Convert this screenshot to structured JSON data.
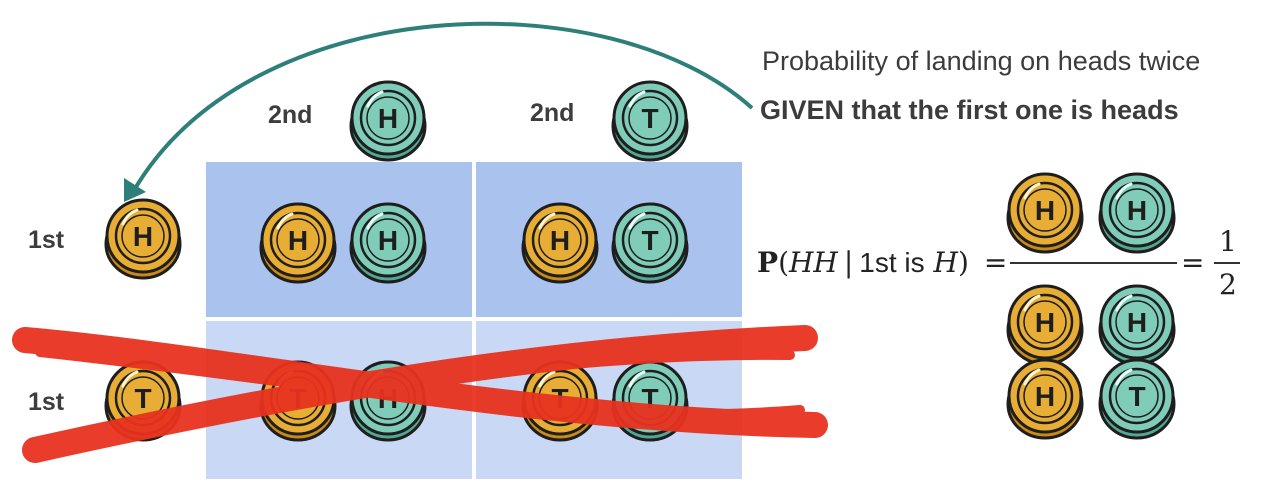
{
  "caption": {
    "line1": "Probability of landing on heads twice",
    "line2": "GIVEN that the first one is heads"
  },
  "col_headers": [
    {
      "label": "2nd",
      "coin": "H"
    },
    {
      "label": "2nd",
      "coin": "T"
    }
  ],
  "row_headers": [
    {
      "label": "1st",
      "coin": "H",
      "crossed_out": false
    },
    {
      "label": "1st",
      "coin": "T",
      "crossed_out": true
    }
  ],
  "cells": [
    [
      "HH",
      "HT"
    ],
    [
      "TH",
      "TT"
    ]
  ],
  "formula": {
    "prob": "P",
    "open": "(",
    "event": "HH",
    "bar": "|",
    "cond_text": "1st is",
    "cond_var": "H",
    "close": ")",
    "equals": "=",
    "numerator_coins": [
      "H",
      "H"
    ],
    "denominator_coins": [
      [
        "H",
        "H"
      ],
      [
        "H",
        "T"
      ]
    ],
    "equals2": "=",
    "result_num": "1",
    "result_den": "2"
  },
  "colors": {
    "coin_gold": "#e7ad34",
    "coin_teal": "#7fcdb9",
    "grid_top": "#a9c3ee",
    "grid_bottom": "#c9d9f5",
    "arrow": "#2e7f7a",
    "cross_out": "#e8321f"
  }
}
